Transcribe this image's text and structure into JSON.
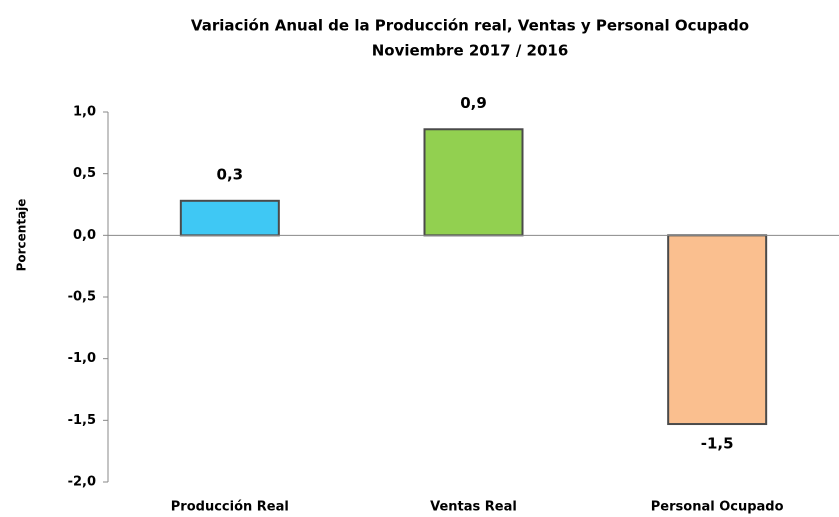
{
  "chart_data": {
    "type": "bar",
    "title": "Variación Anual de la Producción real, Ventas y Personal Ocupado",
    "subtitle": "Noviembre 2017 / 2016",
    "ylabel": "Porcentaje",
    "categories": [
      "Producción Real",
      "Ventas Real",
      "Personal Ocupado"
    ],
    "values": [
      0.28,
      0.86,
      -1.53
    ],
    "value_labels": [
      "0,3",
      "0,9",
      "-1,5"
    ],
    "colors": [
      "#3fc8f4",
      "#92d050",
      "#fabf8f"
    ],
    "ylim": [
      -2,
      1
    ],
    "yticks": [
      {
        "value": 1,
        "label": "1,0"
      },
      {
        "value": 0.5,
        "label": "0,5"
      },
      {
        "value": 0,
        "label": "0,0"
      },
      {
        "value": -0.5,
        "label": "-0,5"
      },
      {
        "value": -1,
        "label": "-1,0"
      },
      {
        "value": -1.5,
        "label": "-1,5"
      },
      {
        "value": -2,
        "label": "-2,0"
      }
    ],
    "grid": false
  }
}
